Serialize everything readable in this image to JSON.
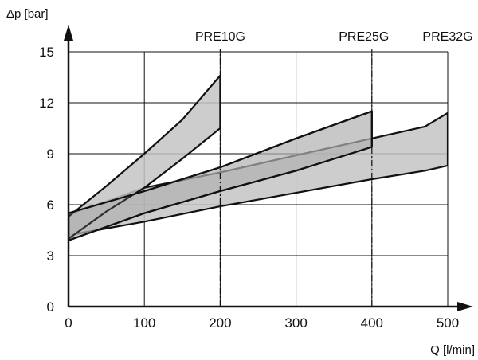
{
  "chart_data": {
    "type": "area",
    "xlabel": "Q [l/min]",
    "ylabel": "Δp [bar]",
    "xlim": [
      0,
      500
    ],
    "ylim": [
      0,
      15
    ],
    "xticks": [
      "0",
      "100",
      "200",
      "300",
      "400",
      "500"
    ],
    "yticks": [
      "0",
      "3",
      "6",
      "9",
      "12",
      "15"
    ],
    "grid": true,
    "colors": {
      "band": "#c4c4c4",
      "overlap": "#8a8a8a",
      "line": "#111111",
      "grid": "#111111"
    },
    "series": [
      {
        "name": "PRE10G",
        "xmax": 200,
        "upper": [
          [
            0,
            5.3
          ],
          [
            50,
            7.1
          ],
          [
            100,
            9.0
          ],
          [
            150,
            11.0
          ],
          [
            200,
            13.6
          ]
        ],
        "lower": [
          [
            0,
            4.0
          ],
          [
            50,
            5.6
          ],
          [
            100,
            7.0
          ],
          [
            150,
            8.7
          ],
          [
            200,
            10.5
          ]
        ]
      },
      {
        "name": "PRE25G",
        "xmax": 400,
        "upper": [
          [
            0,
            5.5
          ],
          [
            100,
            6.8
          ],
          [
            200,
            8.2
          ],
          [
            300,
            9.9
          ],
          [
            400,
            11.5
          ]
        ],
        "lower": [
          [
            0,
            3.9
          ],
          [
            100,
            5.5
          ],
          [
            200,
            6.8
          ],
          [
            300,
            8.0
          ],
          [
            400,
            9.4
          ]
        ]
      },
      {
        "name": "PRE32G",
        "xmax": 500,
        "upper": [
          [
            0,
            5.4
          ],
          [
            100,
            7.0
          ],
          [
            200,
            7.9
          ],
          [
            300,
            8.9
          ],
          [
            400,
            9.9
          ],
          [
            470,
            10.6
          ],
          [
            500,
            11.4
          ]
        ],
        "lower": [
          [
            0,
            4.2
          ],
          [
            100,
            5.0
          ],
          [
            200,
            5.9
          ],
          [
            300,
            6.7
          ],
          [
            400,
            7.5
          ],
          [
            470,
            8.0
          ],
          [
            500,
            8.3
          ]
        ]
      }
    ]
  }
}
